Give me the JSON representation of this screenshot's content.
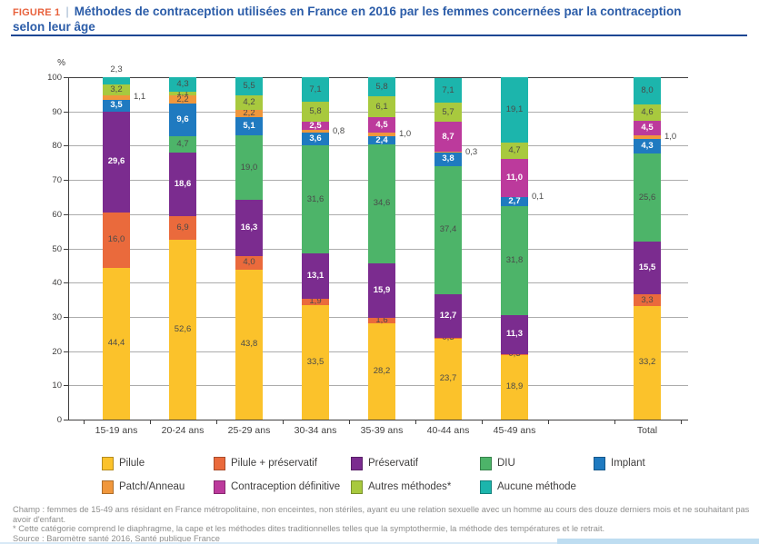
{
  "header": {
    "figure_tag": "FIGURE 1",
    "separator": "|",
    "title": "Méthodes de contraception utilisées en France en 2016 par les femmes concernées par la contraception selon leur âge"
  },
  "chart_data": {
    "type": "bar",
    "stacked": true,
    "title": "Méthodes de contraception utilisées en France en 2016 par les femmes concernées par la contraception selon leur âge",
    "y_axis_unit": "%",
    "ylim": [
      0,
      100
    ],
    "ytick_step": 10,
    "grid": true,
    "legend_position": "bottom",
    "value_decimal_separator": ",",
    "categories": [
      "15-19 ans",
      "20-24 ans",
      "25-29 ans",
      "30-34 ans",
      "35-39 ans",
      "40-44 ans",
      "45-49 ans",
      "Total"
    ],
    "series": [
      {
        "name": "Pilule",
        "color": "#FBC22B",
        "values": [
          44.4,
          52.6,
          43.8,
          33.5,
          28.2,
          23.7,
          18.9,
          33.2
        ]
      },
      {
        "name": "Pilule + préservatif",
        "color": "#EA6A3C",
        "values": [
          16.0,
          6.9,
          4.0,
          1.9,
          1.6,
          0.3,
          0.3,
          3.3
        ]
      },
      {
        "name": "Préservatif",
        "color": "#7B2C8F",
        "values": [
          29.6,
          18.6,
          16.3,
          13.1,
          15.9,
          12.7,
          11.3,
          15.5
        ]
      },
      {
        "name": "DIU",
        "color": "#4DB469",
        "values": [
          0,
          4.7,
          19.0,
          31.6,
          34.6,
          37.4,
          31.8,
          25.6
        ]
      },
      {
        "name": "Implant",
        "color": "#1F7AC0",
        "values": [
          3.5,
          9.6,
          5.1,
          3.6,
          2.4,
          3.8,
          2.7,
          4.3
        ]
      },
      {
        "name": "Patch/Anneau",
        "color": "#F0973C",
        "values": [
          1.1,
          2.2,
          2.2,
          0.8,
          1.0,
          0.3,
          0.1,
          1.0
        ]
      },
      {
        "name": "Contraception définitive",
        "color": "#BC3A9C",
        "values": [
          0,
          0,
          0,
          2.5,
          4.5,
          8.7,
          11.0,
          4.5
        ]
      },
      {
        "name": "Autres méthodes*",
        "color": "#A8C93E",
        "values": [
          3.2,
          1.1,
          4.2,
          5.8,
          6.1,
          5.7,
          4.7,
          4.6
        ]
      },
      {
        "name": "Aucune méthode",
        "color": "#1CB5AC",
        "values": [
          2.3,
          4.3,
          5.5,
          7.1,
          5.8,
          7.1,
          19.1,
          8.0
        ]
      }
    ]
  },
  "footer": {
    "champ": "Champ : femmes de 15-49 ans résidant en France métropolitaine, non enceintes, non stériles, ayant eu une relation sexuelle avec un homme au cours des douze derniers mois et ne souhaitant pas avoir d'enfant.",
    "note": "* Cette catégorie comprend le diaphragme, la cape et les méthodes dites traditionnelles telles que la symptothermie, la méthode des températures et le retrait.",
    "source": "Source : Baromètre santé 2016, Santé publique France"
  }
}
